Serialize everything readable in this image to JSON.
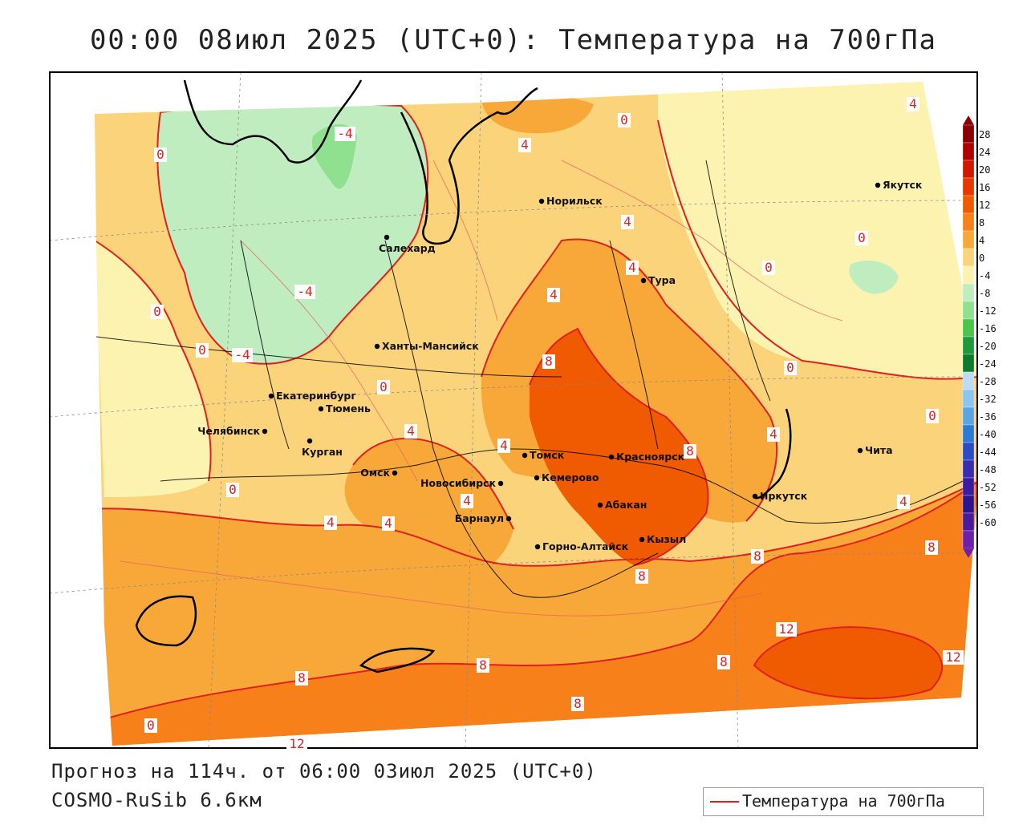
{
  "title": "00:00 08июл 2025 (UTC+0): Температура на 700гПа",
  "forecast_line": "Прогноз на 114ч. от 06:00 03июл 2025 (UTC+0)",
  "model_line": "COSMO-RuSib 6.6км",
  "legend_label": "Температура на 700гПа",
  "isotherm_color": "#e02020",
  "cities": [
    {
      "name": "Норильск"
    },
    {
      "name": "Якутск"
    },
    {
      "name": "Салехард"
    },
    {
      "name": "Тура"
    },
    {
      "name": "Ханты-Мансийск"
    },
    {
      "name": "Екатеринбург"
    },
    {
      "name": "Тюмень"
    },
    {
      "name": "Челябинск"
    },
    {
      "name": "Курган"
    },
    {
      "name": "Омск"
    },
    {
      "name": "Новосибирск"
    },
    {
      "name": "Томск"
    },
    {
      "name": "Красноярск"
    },
    {
      "name": "Кемерово"
    },
    {
      "name": "Барнаул"
    },
    {
      "name": "Абакан"
    },
    {
      "name": "Кызыл"
    },
    {
      "name": "Горно-Алтайск"
    },
    {
      "name": "Иркутск"
    },
    {
      "name": "Чита"
    }
  ],
  "contour_labels": [
    "4",
    "0",
    "-4",
    "4",
    "0",
    "0",
    "4",
    "0",
    "0",
    "-4",
    "0",
    "0",
    "-4",
    "4",
    "8",
    "0",
    "4",
    "0",
    "8",
    "4",
    "4",
    "4",
    "4",
    "4",
    "4",
    "8",
    "8",
    "8",
    "12",
    "12",
    "8",
    "8",
    "8",
    "8",
    "0",
    "0",
    "4",
    "12"
  ],
  "colorbar": {
    "ticks": [
      "28",
      "24",
      "20",
      "16",
      "12",
      "8",
      "4",
      "0",
      "-4",
      "-8",
      "-12",
      "-16",
      "-20",
      "-24",
      "-28",
      "-32",
      "-36",
      "-40",
      "-44",
      "-48",
      "-52",
      "-56",
      "-60"
    ],
    "colors": [
      "#8b0000",
      "#b00000",
      "#d41800",
      "#e83800",
      "#f05a00",
      "#f8801a",
      "#f8a838",
      "#fbd37a",
      "#fdf3b0",
      "#bfedbf",
      "#8fe08f",
      "#4cc44c",
      "#1e9a3c",
      "#0e7a2e",
      "#bcdcf4",
      "#8cc6ef",
      "#58a6e6",
      "#2a7bd8",
      "#2a4cc4",
      "#3a2cb0",
      "#3a1ca0",
      "#2c1490",
      "#4a1a9c",
      "#7020a8"
    ]
  }
}
